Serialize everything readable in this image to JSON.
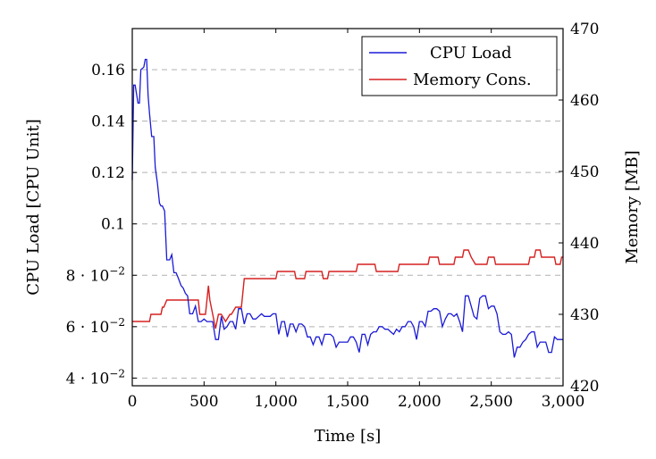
{
  "chart_data": {
    "type": "line",
    "xlabel": "Time [s]",
    "ylabel_left": "CPU Load [CPU Unit]",
    "ylabel_right": "Memory [MB]",
    "xlim": [
      0,
      3000
    ],
    "ylim_left": [
      0.037,
      0.176
    ],
    "ylim_right": [
      420,
      470
    ],
    "x_ticks": [
      0,
      500,
      1000,
      1500,
      2000,
      2500,
      3000
    ],
    "x_tick_labels": [
      "0",
      "500",
      "1,000",
      "1,500",
      "2,000",
      "2,500",
      "3,000"
    ],
    "y_left_ticks": [
      0.04,
      0.06,
      0.08,
      0.1,
      0.12,
      0.14,
      0.16
    ],
    "y_left_tick_labels": [
      {
        "mantissa": "4 · 10",
        "exp": "−2"
      },
      {
        "mantissa": "6 · 10",
        "exp": "−2"
      },
      {
        "mantissa": "8 · 10",
        "exp": "−2"
      },
      {
        "mantissa": "0.1",
        "exp": ""
      },
      {
        "mantissa": "0.12",
        "exp": ""
      },
      {
        "mantissa": "0.14",
        "exp": ""
      },
      {
        "mantissa": "0.16",
        "exp": ""
      }
    ],
    "y_right_ticks": [
      420,
      430,
      440,
      450,
      460,
      470
    ],
    "y_right_tick_labels": [
      "420",
      "430",
      "440",
      "450",
      "460",
      "470"
    ],
    "grid": "horizontal dashed",
    "legend_position": "top-right",
    "series": [
      {
        "name": "CPU Load",
        "axis": "left",
        "color": "#1a1ad6",
        "x": [
          0,
          10,
          20,
          40,
          50,
          60,
          80,
          90,
          100,
          110,
          120,
          135,
          150,
          160,
          175,
          190,
          200,
          210,
          225,
          240,
          260,
          275,
          290,
          305,
          320,
          340,
          355,
          370,
          385,
          400,
          420,
          440,
          460,
          480,
          500,
          520,
          540,
          560,
          580,
          600,
          620,
          640,
          660,
          680,
          700,
          720,
          740,
          760,
          780,
          800,
          820,
          840,
          860,
          880,
          900,
          920,
          940,
          960,
          980,
          1000,
          1020,
          1040,
          1060,
          1080,
          1100,
          1120,
          1140,
          1160,
          1180,
          1200,
          1220,
          1240,
          1260,
          1280,
          1300,
          1320,
          1340,
          1360,
          1380,
          1400,
          1420,
          1440,
          1460,
          1480,
          1500,
          1520,
          1540,
          1560,
          1580,
          1600,
          1620,
          1640,
          1660,
          1680,
          1700,
          1720,
          1740,
          1760,
          1780,
          1800,
          1820,
          1840,
          1860,
          1880,
          1900,
          1920,
          1940,
          1960,
          1980,
          2000,
          2020,
          2040,
          2060,
          2080,
          2100,
          2120,
          2140,
          2160,
          2180,
          2200,
          2220,
          2240,
          2260,
          2280,
          2300,
          2320,
          2340,
          2360,
          2380,
          2400,
          2420,
          2440,
          2460,
          2480,
          2500,
          2520,
          2540,
          2560,
          2580,
          2600,
          2620,
          2640,
          2660,
          2680,
          2700,
          2720,
          2740,
          2760,
          2780,
          2800,
          2820,
          2840,
          2860,
          2880,
          2900,
          2920,
          2940,
          2960,
          2980,
          3000
        ],
        "values": [
          0.117,
          0.154,
          0.154,
          0.147,
          0.147,
          0.16,
          0.161,
          0.164,
          0.164,
          0.15,
          0.143,
          0.134,
          0.134,
          0.122,
          0.116,
          0.108,
          0.107,
          0.107,
          0.105,
          0.086,
          0.086,
          0.088,
          0.081,
          0.081,
          0.079,
          0.076,
          0.075,
          0.073,
          0.072,
          0.065,
          0.065,
          0.068,
          0.062,
          0.062,
          0.063,
          0.062,
          0.062,
          0.062,
          0.055,
          0.055,
          0.064,
          0.059,
          0.06,
          0.062,
          0.062,
          0.059,
          0.067,
          0.067,
          0.061,
          0.065,
          0.065,
          0.063,
          0.063,
          0.064,
          0.065,
          0.064,
          0.064,
          0.064,
          0.065,
          0.065,
          0.057,
          0.062,
          0.062,
          0.056,
          0.061,
          0.061,
          0.058,
          0.061,
          0.061,
          0.06,
          0.056,
          0.056,
          0.053,
          0.056,
          0.056,
          0.053,
          0.057,
          0.057,
          0.057,
          0.056,
          0.052,
          0.054,
          0.054,
          0.054,
          0.054,
          0.056,
          0.056,
          0.054,
          0.05,
          0.057,
          0.057,
          0.053,
          0.057,
          0.058,
          0.058,
          0.06,
          0.06,
          0.059,
          0.059,
          0.058,
          0.057,
          0.059,
          0.058,
          0.06,
          0.06,
          0.062,
          0.062,
          0.06,
          0.055,
          0.062,
          0.062,
          0.06,
          0.066,
          0.066,
          0.067,
          0.067,
          0.066,
          0.06,
          0.063,
          0.065,
          0.065,
          0.064,
          0.065,
          0.062,
          0.058,
          0.072,
          0.072,
          0.068,
          0.064,
          0.063,
          0.071,
          0.072,
          0.072,
          0.067,
          0.068,
          0.068,
          0.065,
          0.058,
          0.057,
          0.057,
          0.058,
          0.057,
          0.048,
          0.052,
          0.052,
          0.054,
          0.055,
          0.057,
          0.058,
          0.058,
          0.052,
          0.054,
          0.054,
          0.054,
          0.05,
          0.05,
          0.056,
          0.055,
          0.055,
          0.055
        ]
      },
      {
        "name": "Memory Cons.",
        "axis": "right",
        "color": "#d62020",
        "x": [
          0,
          120,
          130,
          200,
          210,
          220,
          240,
          460,
          470,
          510,
          530,
          540,
          580,
          600,
          620,
          650,
          680,
          690,
          720,
          760,
          780,
          1000,
          1010,
          1130,
          1140,
          1200,
          1210,
          1320,
          1330,
          1360,
          1370,
          1560,
          1570,
          1690,
          1700,
          1850,
          1860,
          2060,
          2070,
          2130,
          2140,
          2240,
          2250,
          2300,
          2310,
          2340,
          2360,
          2390,
          2470,
          2480,
          2520,
          2530,
          2690,
          2700,
          2760,
          2770,
          2800,
          2810,
          2840,
          2850,
          2940,
          2950,
          2980,
          2990,
          3000
        ],
        "values": [
          429,
          429,
          430,
          430,
          431,
          431,
          432,
          432,
          430,
          430,
          434,
          432,
          428,
          430,
          430,
          429,
          430,
          430,
          431,
          431,
          435,
          435,
          436,
          436,
          435,
          435,
          436,
          436,
          435,
          435,
          436,
          436,
          437,
          437,
          436,
          436,
          437,
          437,
          438,
          438,
          437,
          437,
          438,
          438,
          439,
          439,
          438,
          437,
          437,
          438,
          438,
          437,
          437,
          437,
          437,
          438,
          438,
          439,
          439,
          438,
          438,
          437,
          437,
          438,
          438
        ]
      }
    ]
  }
}
